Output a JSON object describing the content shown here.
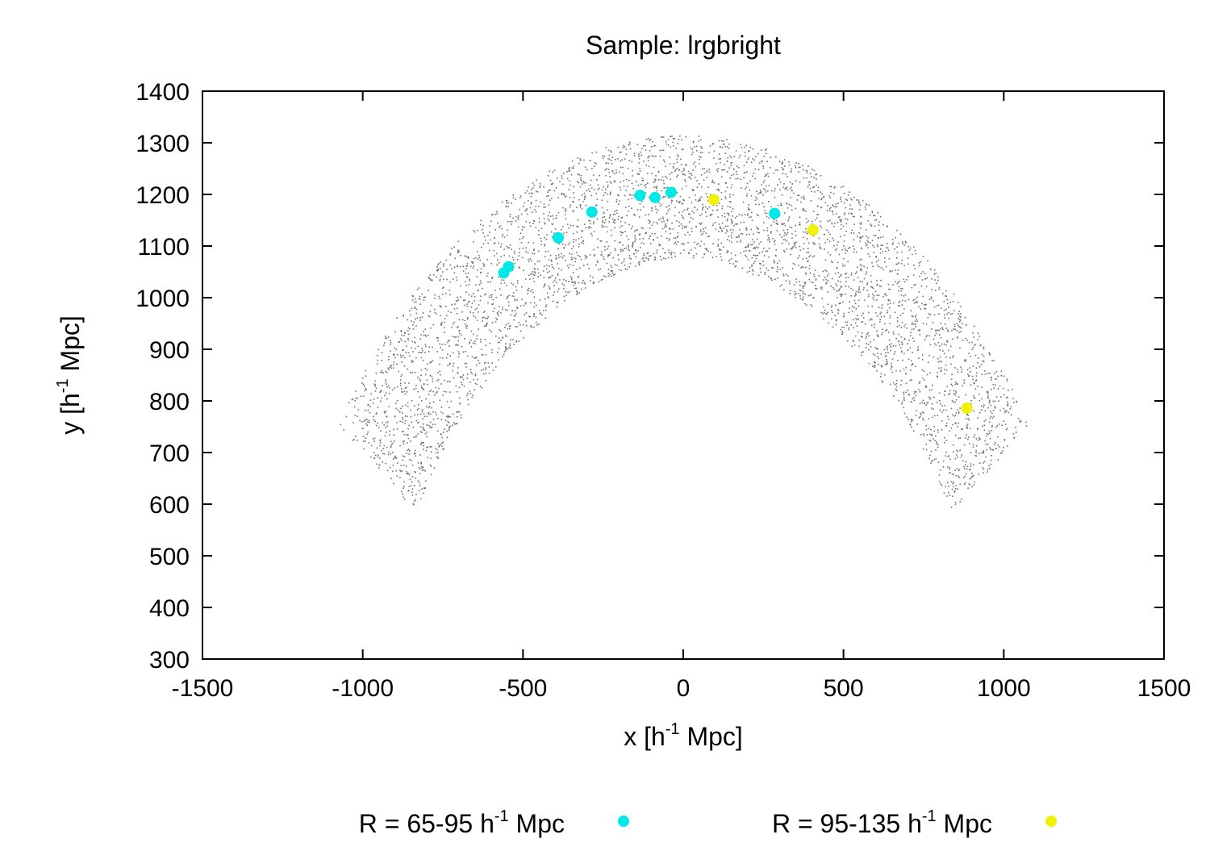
{
  "chart_data": {
    "type": "scatter",
    "title": "Sample: lrgbright",
    "xlabel": {
      "pre": "x [h",
      "sup": "-1",
      "post": " Mpc]"
    },
    "ylabel": {
      "pre": "y [h",
      "sup": "-1",
      "post": " Mpc]"
    },
    "xlim": [
      -1500,
      1500
    ],
    "ylim": [
      300,
      1400
    ],
    "xticks": [
      "-1500",
      "-1000",
      "-500",
      "0",
      "500",
      "1000",
      "1500"
    ],
    "yticks": [
      "300",
      "400",
      "500",
      "600",
      "700",
      "800",
      "900",
      "1000",
      "1100",
      "1200",
      "1300",
      "1400"
    ],
    "background_sample": {
      "description_free": true,
      "count": 4500,
      "color": "#707070",
      "arc": {
        "inner_radius": 1080,
        "outer_radius": 1315,
        "extra_outer_left": 0,
        "extra_outer_right": 100,
        "theta_min_deg": 35,
        "theta_max_deg": 145,
        "center_x": 0,
        "center_y": 0
      }
    },
    "series": [
      {
        "name": "R = 65-95 h-1 Mpc",
        "label_pre": "R = 65-95 h",
        "label_sup": "-1",
        "label_post": " Mpc",
        "color": "#00e8e8",
        "points": [
          [
            -560,
            1048
          ],
          [
            -545,
            1060
          ],
          [
            -390,
            1116
          ],
          [
            -285,
            1166
          ],
          [
            -135,
            1198
          ],
          [
            -88,
            1194
          ],
          [
            -38,
            1204
          ],
          [
            285,
            1163
          ]
        ]
      },
      {
        "name": "R = 95-135 h-1 Mpc",
        "label_pre": "R = 95-135 h",
        "label_sup": "-1",
        "label_post": " Mpc",
        "color": "#f2f200",
        "points": [
          [
            95,
            1190
          ],
          [
            405,
            1131
          ],
          [
            885,
            786
          ]
        ]
      }
    ]
  }
}
